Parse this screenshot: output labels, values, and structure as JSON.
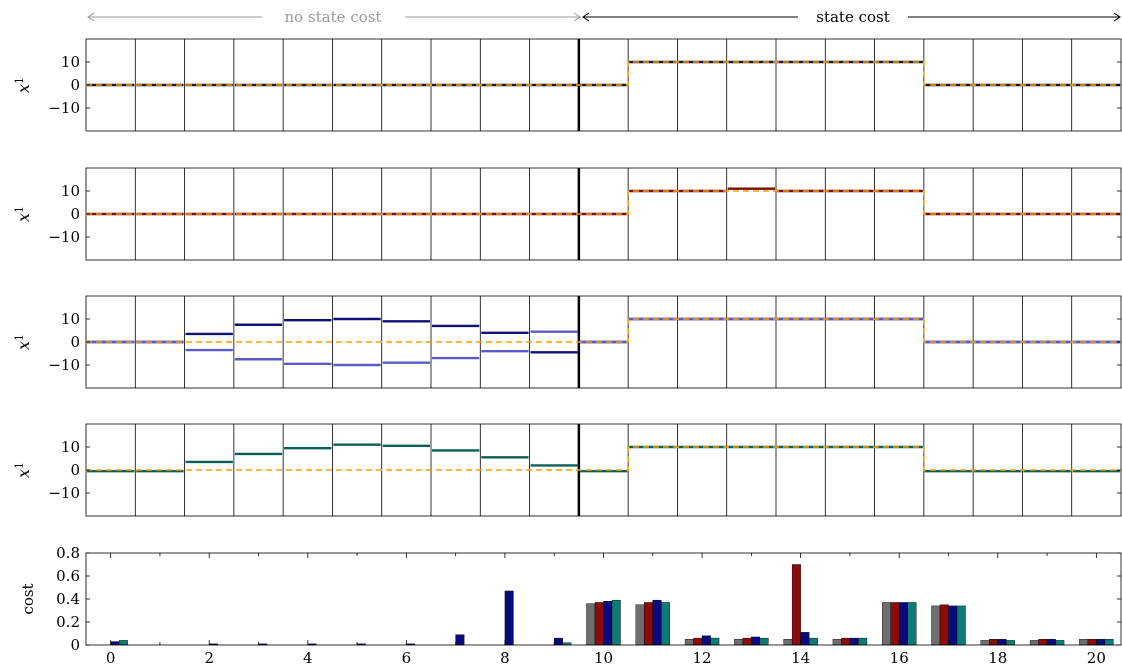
{
  "header": {
    "left_label": "no state cost",
    "right_label": "state cost",
    "left_color": "#9a9a9a",
    "right_color": "#000000"
  },
  "chart_data": [
    {
      "type": "line",
      "ylabel": "x",
      "ylabel_superscript": "1",
      "ylim": [
        -20,
        20
      ],
      "yticks": [
        10,
        0,
        -10
      ],
      "reference_color": "#f5a000",
      "reference": [
        0,
        0,
        0,
        0,
        0,
        0,
        0,
        0,
        0,
        0,
        0,
        10,
        10,
        10,
        10,
        10,
        10,
        0,
        0,
        0,
        0
      ],
      "series": [
        {
          "color": "#1a1a1a",
          "values": [
            0,
            0,
            0,
            0,
            0,
            0,
            0,
            0,
            0,
            0,
            0,
            10,
            10,
            10,
            10,
            10,
            10,
            0,
            0,
            0,
            0
          ]
        }
      ]
    },
    {
      "type": "line",
      "ylabel": "x",
      "ylabel_superscript": "1",
      "ylim": [
        -20,
        20
      ],
      "yticks": [
        10,
        0,
        -10
      ],
      "reference_color": "#f5a000",
      "reference": [
        0,
        0,
        0,
        0,
        0,
        0,
        0,
        0,
        0,
        0,
        0,
        10,
        10,
        10,
        10,
        10,
        10,
        0,
        0,
        0,
        0
      ],
      "series": [
        {
          "color": "#7a0a0a",
          "values": [
            0,
            0,
            0,
            0,
            0,
            0,
            0,
            0,
            0,
            0,
            0,
            10,
            10,
            11,
            10,
            10,
            10,
            0,
            0,
            0,
            0
          ]
        }
      ]
    },
    {
      "type": "line",
      "ylabel": "x",
      "ylabel_superscript": "1",
      "ylim": [
        -20,
        20
      ],
      "yticks": [
        10,
        0,
        -10
      ],
      "reference_color": "#f5a000",
      "reference": [
        0,
        0,
        0,
        0,
        0,
        0,
        0,
        0,
        0,
        0,
        0,
        10,
        10,
        10,
        10,
        10,
        10,
        0,
        0,
        0,
        0
      ],
      "series": [
        {
          "color": "#10107a",
          "values": [
            0,
            0,
            3.5,
            7.5,
            9.5,
            10,
            9,
            7,
            4,
            -4.5,
            0,
            10,
            10,
            10,
            10,
            10,
            10,
            0,
            0,
            0,
            0
          ]
        },
        {
          "color": "#5a5ac8",
          "values": [
            0,
            0,
            -3.5,
            -7.5,
            -9.5,
            -10,
            -9,
            -7,
            -4,
            4.5,
            0,
            10,
            10,
            10,
            10,
            10,
            10,
            0,
            0,
            0,
            0
          ]
        }
      ]
    },
    {
      "type": "line",
      "ylabel": "x",
      "ylabel_superscript": "1",
      "ylim": [
        -20,
        20
      ],
      "yticks": [
        10,
        0,
        -10
      ],
      "reference_color": "#f5a000",
      "reference": [
        0,
        0,
        0,
        0,
        0,
        0,
        0,
        0,
        0,
        0,
        0,
        10,
        10,
        10,
        10,
        10,
        10,
        0,
        0,
        0,
        0
      ],
      "series": [
        {
          "color": "#0c5e58",
          "values": [
            -0.5,
            -0.5,
            3.5,
            7,
            9.5,
            11,
            10.5,
            8.5,
            5.5,
            2,
            -0.5,
            10,
            10,
            10,
            10,
            10,
            10,
            -0.5,
            -0.5,
            -0.5,
            -0.5
          ]
        }
      ]
    },
    {
      "type": "bar",
      "ylabel": "cost",
      "ylim": [
        0,
        0.8
      ],
      "yticks": [
        0,
        0.2,
        0.4,
        0.6,
        0.8
      ],
      "ytick_labels": [
        "0",
        "0.2",
        "0.4",
        "0.6",
        "0.8"
      ],
      "x": [
        0,
        1,
        2,
        3,
        4,
        5,
        6,
        7,
        8,
        9,
        10,
        11,
        12,
        13,
        14,
        15,
        16,
        17,
        18,
        19,
        20
      ],
      "xtick_labels": [
        "0",
        "2",
        "4",
        "6",
        "8",
        "10",
        "12",
        "14",
        "16",
        "18",
        "20"
      ],
      "series": [
        {
          "color": "#6e6e6e",
          "values": [
            0,
            0,
            0,
            0,
            0,
            0,
            0,
            0,
            0,
            0,
            0.36,
            0.35,
            0.05,
            0.05,
            0.05,
            0.05,
            0.37,
            0.34,
            0.04,
            0.04,
            0.05
          ]
        },
        {
          "color": "#8b0a0a",
          "values": [
            0,
            0,
            0,
            0,
            0,
            0,
            0,
            0,
            0,
            0,
            0.37,
            0.37,
            0.06,
            0.06,
            0.7,
            0.06,
            0.37,
            0.35,
            0.05,
            0.05,
            0.05
          ]
        },
        {
          "color": "#0a0a80",
          "values": [
            0.03,
            0,
            0.01,
            0.01,
            0.01,
            0.01,
            0.01,
            0.09,
            0.47,
            0.06,
            0.38,
            0.39,
            0.08,
            0.07,
            0.11,
            0.06,
            0.37,
            0.34,
            0.05,
            0.05,
            0.05
          ]
        },
        {
          "color": "#0e7a74",
          "values": [
            0.04,
            0,
            0,
            0,
            0,
            0,
            0,
            0,
            0,
            0.02,
            0.39,
            0.37,
            0.06,
            0.06,
            0.06,
            0.06,
            0.37,
            0.34,
            0.04,
            0.04,
            0.05
          ]
        }
      ]
    }
  ]
}
